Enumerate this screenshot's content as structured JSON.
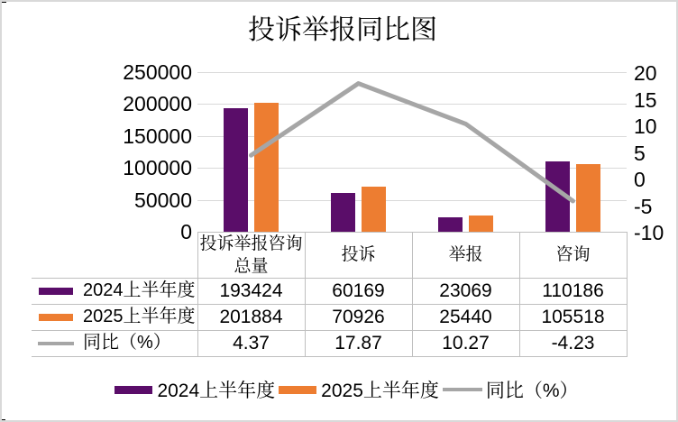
{
  "chart_data": {
    "type": "combo-bar-line",
    "title": "投诉举报同比图",
    "categories": [
      "投诉举报咨询总量",
      "投诉",
      "举报",
      "咨询"
    ],
    "series": [
      {
        "name": "2024上半年度",
        "type": "bar",
        "axis": "primary",
        "color": "#5a0d69",
        "values": [
          193424,
          60169,
          23069,
          110186
        ]
      },
      {
        "name": "2025上半年度",
        "type": "bar",
        "axis": "primary",
        "color": "#ed7d31",
        "values": [
          201884,
          70926,
          25440,
          105518
        ]
      },
      {
        "name": "同比（%）",
        "type": "line",
        "axis": "secondary",
        "color": "#a6a6a6",
        "values": [
          4.37,
          17.87,
          10.27,
          -4.23
        ]
      }
    ],
    "primary_axis": {
      "min": 0,
      "max": 250000,
      "step": 50000,
      "ticks": [
        0,
        50000,
        100000,
        150000,
        200000,
        250000
      ]
    },
    "secondary_axis": {
      "min": -10,
      "max": 20,
      "step": 5,
      "ticks": [
        -10,
        -5,
        0,
        5,
        10,
        15,
        20
      ]
    },
    "grid": true,
    "legend_position": "bottom",
    "show_data_table": true
  },
  "colors": {
    "background": "#ffffff",
    "frame_border": "#d9d9d9",
    "gridline": "#d9d9d9",
    "table_border": "#bfbfbf",
    "text": "#000000"
  }
}
